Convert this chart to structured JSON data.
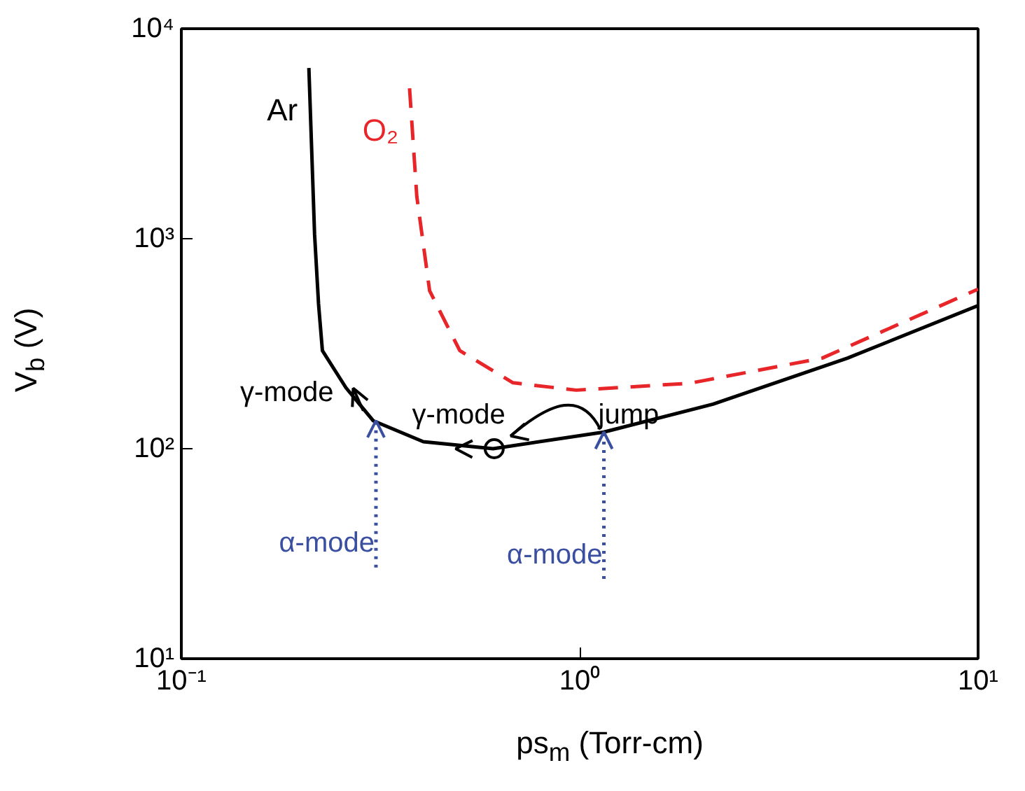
{
  "chart_data": {
    "type": "line",
    "xlabel": "ps$_{m}$ (Torr-cm)",
    "ylabel": "V$_{b}$ (V)",
    "log": "xy",
    "grid": false,
    "xlim": [
      0.1,
      10
    ],
    "ylim": [
      10,
      10000
    ],
    "xticks": [
      {
        "value": 0.1,
        "label": "10⁻¹"
      },
      {
        "value": 1,
        "label": "10⁰"
      },
      {
        "value": 10,
        "label": "10¹"
      }
    ],
    "yticks": [
      {
        "value": 10,
        "label": "10¹"
      },
      {
        "value": 100,
        "label": "10²"
      },
      {
        "value": 1000,
        "label": "10³"
      },
      {
        "value": 10000,
        "label": "10⁴"
      }
    ],
    "series": [
      {
        "name": "Ar",
        "color": "#000000",
        "line_style": "solid",
        "x": [
          0.209,
          0.216,
          0.221,
          0.226,
          0.259,
          0.303,
          0.405,
          0.606,
          1.15,
          2.16,
          4.7,
          10
        ],
        "values": [
          6500,
          1050,
          490,
          293,
          195,
          136,
          108,
          100,
          120,
          163,
          270,
          480
        ]
      },
      {
        "name": "O₂",
        "color": "#e8262a",
        "line_style": "dashed",
        "x": [
          0.374,
          0.39,
          0.42,
          0.5,
          0.68,
          0.98,
          1.89,
          4.06,
          10
        ],
        "values": [
          5200,
          1590,
          565,
          293,
          206,
          190,
          205,
          270,
          575
        ]
      }
    ],
    "annotations": [
      {
        "text": "γ-mode",
        "x": 0.27,
        "y": 185
      },
      {
        "text": "γ-mode",
        "x": 0.61,
        "y": 100
      },
      {
        "text": "jump",
        "x": 1.15,
        "y": 120
      },
      {
        "text": "α-mode",
        "x": 0.308,
        "y": 136
      },
      {
        "text": "α-mode",
        "x": 1.15,
        "y": 120
      }
    ]
  }
}
